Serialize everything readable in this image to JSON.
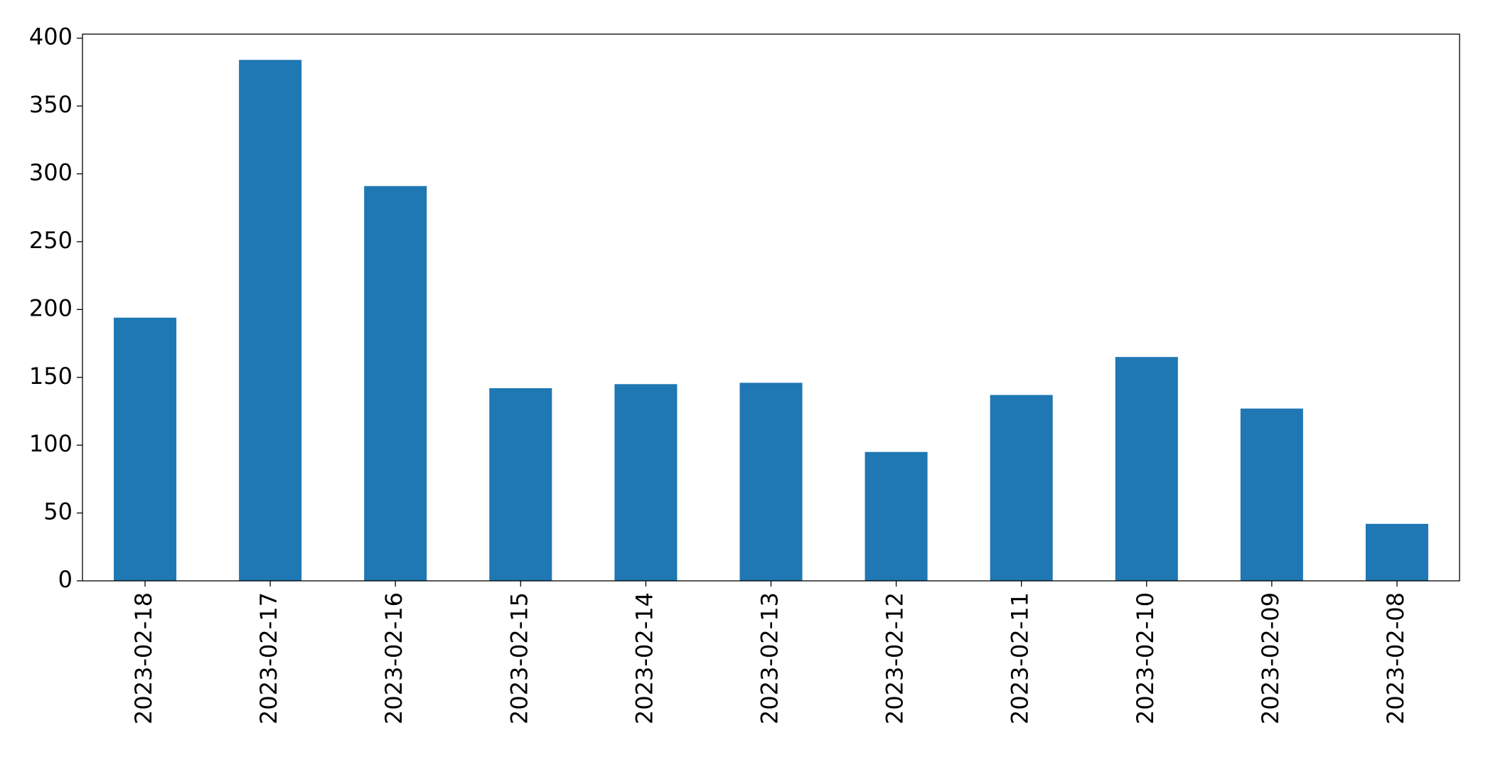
{
  "chart_data": {
    "type": "bar",
    "categories": [
      "2023-02-18",
      "2023-02-17",
      "2023-02-16",
      "2023-02-15",
      "2023-02-14",
      "2023-02-13",
      "2023-02-12",
      "2023-02-11",
      "2023-02-10",
      "2023-02-09",
      "2023-02-08"
    ],
    "values": [
      194,
      384,
      291,
      142,
      145,
      146,
      95,
      137,
      165,
      127,
      42
    ],
    "color": "#1f77b4",
    "ylim": [
      0,
      403
    ],
    "yticks": [
      0,
      50,
      100,
      150,
      200,
      250,
      300,
      350,
      400
    ]
  }
}
